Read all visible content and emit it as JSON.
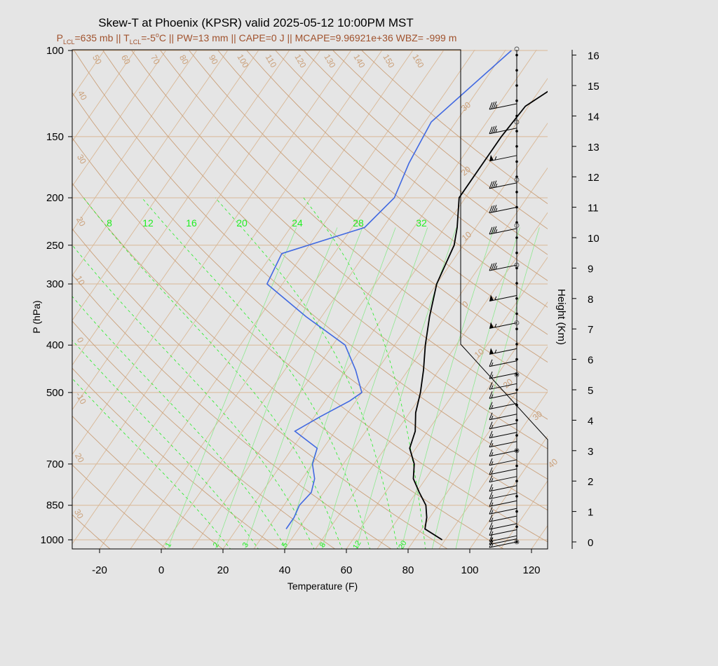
{
  "header": {
    "title": "Skew-T at Phoenix (KPSR) valid 2025-05-12 10:00PM MST",
    "subtitle_parts": [
      "P",
      "LCL",
      "=635 mb || T",
      "LCL",
      "=-5",
      "o",
      "C || PW=13 mm || CAPE=0 J || MCAPE=9.96921e+36 WBZ= -999 m"
    ]
  },
  "colors": {
    "background": "#e5e5e5",
    "temperature": "#000000",
    "dewpoint": "#4169e1",
    "isotherm": "#d9b896",
    "adiabat": "#caa07a",
    "mixing_ratio": "#22ee22",
    "subtitle": "#a0522d"
  },
  "chart_data": {
    "type": "line",
    "title": "Skew-T at Phoenix (KPSR) valid 2025-05-12 10:00PM MST",
    "xlabel": "Temperature (F)",
    "ylabel": "P (hPa)",
    "y2label": "Height (Km)",
    "x_range": [
      -29,
      125
    ],
    "y_range": [
      1050,
      100
    ],
    "y_scale": "log",
    "x_ticks": [
      -20,
      0,
      20,
      40,
      60,
      80,
      100,
      120
    ],
    "y_ticks": [
      100,
      150,
      200,
      250,
      300,
      400,
      500,
      700,
      850,
      1000
    ],
    "height_ticks": [
      0,
      1,
      2,
      3,
      4,
      5,
      6,
      7,
      8,
      9,
      10,
      11,
      12,
      13,
      14,
      15,
      16
    ],
    "isotherm_labels": [
      30,
      20,
      10,
      0,
      10,
      20,
      30,
      40
    ],
    "adiabat_labels": [
      50,
      60,
      70,
      80,
      90,
      100,
      110,
      120,
      130,
      140,
      150,
      160,
      40,
      30,
      20,
      10,
      0,
      -10,
      20,
      30
    ],
    "mixing_ratio_labels_top": [
      8,
      12,
      16,
      20,
      24,
      28,
      32
    ],
    "mixing_ratio_labels_bottom": [
      1,
      2,
      3,
      5,
      8,
      12,
      20
    ],
    "series": [
      {
        "points": [
          [
            1000,
            89
          ],
          [
            950,
            81
          ],
          [
            900,
            79
          ],
          [
            850,
            76
          ],
          [
            800,
            71
          ],
          [
            750,
            66
          ],
          [
            700,
            63
          ],
          [
            650,
            58
          ],
          [
            600,
            56
          ],
          [
            550,
            52
          ],
          [
            500,
            49
          ],
          [
            450,
            45
          ],
          [
            400,
            40
          ],
          [
            350,
            35
          ],
          [
            300,
            30
          ],
          [
            250,
            27
          ],
          [
            230,
            24
          ],
          [
            200,
            18
          ],
          [
            175,
            18
          ],
          [
            150,
            18
          ],
          [
            130,
            19
          ],
          [
            115,
            26
          ],
          [
            100,
            33
          ]
        ]
      },
      {
        "points": [
          [
            950,
            36
          ],
          [
            900,
            36
          ],
          [
            850,
            35
          ],
          [
            800,
            36
          ],
          [
            750,
            34
          ],
          [
            700,
            30
          ],
          [
            650,
            28
          ],
          [
            600,
            17
          ],
          [
            560,
            22
          ],
          [
            520,
            28
          ],
          [
            500,
            30
          ],
          [
            450,
            23
          ],
          [
            400,
            14
          ],
          [
            350,
            -5
          ],
          [
            300,
            -25
          ],
          [
            260,
            -27
          ],
          [
            230,
            -6
          ],
          [
            200,
            -3
          ],
          [
            170,
            -6
          ],
          [
            140,
            -8
          ],
          [
            100,
            2
          ]
        ]
      }
    ],
    "wind_barbs": [
      {
        "p": 1000,
        "h": 0.0,
        "dir": 250,
        "spd": 15
      },
      {
        "p": 990,
        "h": 0.1,
        "dir": 250,
        "spd": 15
      },
      {
        "p": 975,
        "h": 0.2,
        "dir": 255,
        "spd": 15
      },
      {
        "p": 950,
        "h": 0.4,
        "dir": 255,
        "spd": 15
      },
      {
        "p": 925,
        "h": 0.6,
        "dir": 255,
        "spd": 15
      },
      {
        "p": 900,
        "h": 0.85,
        "dir": 255,
        "spd": 15
      },
      {
        "p": 875,
        "h": 1.1,
        "dir": 255,
        "spd": 15
      },
      {
        "p": 850,
        "h": 1.35,
        "dir": 255,
        "spd": 15
      },
      {
        "p": 825,
        "h": 1.6,
        "dir": 255,
        "spd": 15
      },
      {
        "p": 800,
        "h": 1.85,
        "dir": 255,
        "spd": 15
      },
      {
        "p": 775,
        "h": 2.15,
        "dir": 255,
        "spd": 15
      },
      {
        "p": 750,
        "h": 2.4,
        "dir": 250,
        "spd": 15
      },
      {
        "p": 725,
        "h": 2.7,
        "dir": 250,
        "spd": 15
      },
      {
        "p": 700,
        "h": 3.0,
        "dir": 250,
        "spd": 15
      },
      {
        "p": 675,
        "h": 3.3,
        "dir": 250,
        "spd": 15
      },
      {
        "p": 650,
        "h": 3.6,
        "dir": 250,
        "spd": 15
      },
      {
        "p": 625,
        "h": 3.9,
        "dir": 250,
        "spd": 15
      },
      {
        "p": 600,
        "h": 4.2,
        "dir": 250,
        "spd": 15
      },
      {
        "p": 575,
        "h": 4.55,
        "dir": 250,
        "spd": 15
      },
      {
        "p": 550,
        "h": 4.9,
        "dir": 250,
        "spd": 15
      },
      {
        "p": 525,
        "h": 5.2,
        "dir": 250,
        "spd": 15
      },
      {
        "p": 500,
        "h": 5.55,
        "dir": 250,
        "spd": 15
      },
      {
        "p": 475,
        "h": 5.95,
        "dir": 250,
        "spd": 15
      },
      {
        "p": 450,
        "h": 6.35,
        "dir": 255,
        "spd": 55
      },
      {
        "p": 400,
        "h": 7.2,
        "dir": 255,
        "spd": 55
      },
      {
        "p": 350,
        "h": 8.1,
        "dir": 255,
        "spd": 55
      },
      {
        "p": 300,
        "h": 9.1,
        "dir": 255,
        "spd": 35
      },
      {
        "p": 250,
        "h": 10.3,
        "dir": 255,
        "spd": 35
      },
      {
        "p": 225,
        "h": 11.0,
        "dir": 255,
        "spd": 35
      },
      {
        "p": 200,
        "h": 11.8,
        "dir": 255,
        "spd": 35
      },
      {
        "p": 175,
        "h": 12.7,
        "dir": 255,
        "spd": 55
      },
      {
        "p": 150,
        "h": 13.6,
        "dir": 255,
        "spd": 35
      },
      {
        "p": 125,
        "h": 14.4,
        "dir": 255,
        "spd": 35
      }
    ]
  }
}
